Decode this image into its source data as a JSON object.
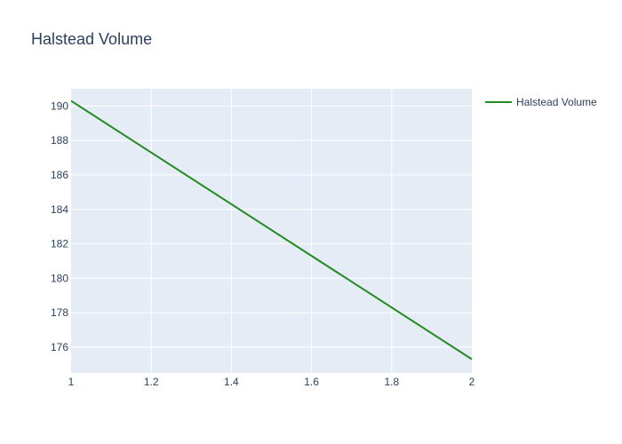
{
  "chart_data": {
    "type": "line",
    "title": "Halstead Volume",
    "xlabel": "",
    "ylabel": "",
    "xlim": [
      1,
      2
    ],
    "ylim": [
      174.5,
      191.0
    ],
    "x_ticks": [
      1,
      1.2,
      1.4,
      1.6,
      1.8,
      2
    ],
    "x_tick_labels": [
      "1",
      "1.2",
      "1.4",
      "1.6",
      "1.8",
      "2"
    ],
    "y_ticks": [
      176,
      178,
      180,
      182,
      184,
      186,
      188,
      190
    ],
    "y_tick_labels": [
      "176",
      "178",
      "180",
      "182",
      "184",
      "186",
      "188",
      "190"
    ],
    "grid": true,
    "legend_position": "top-right",
    "series": [
      {
        "name": "Halstead Volume",
        "color": "#228b22",
        "x": [
          1,
          2
        ],
        "y": [
          190.3,
          175.3
        ]
      }
    ]
  },
  "colors": {
    "plot_background": "#e5ecf6",
    "grid": "#ffffff",
    "text": "#2a3f5f"
  }
}
